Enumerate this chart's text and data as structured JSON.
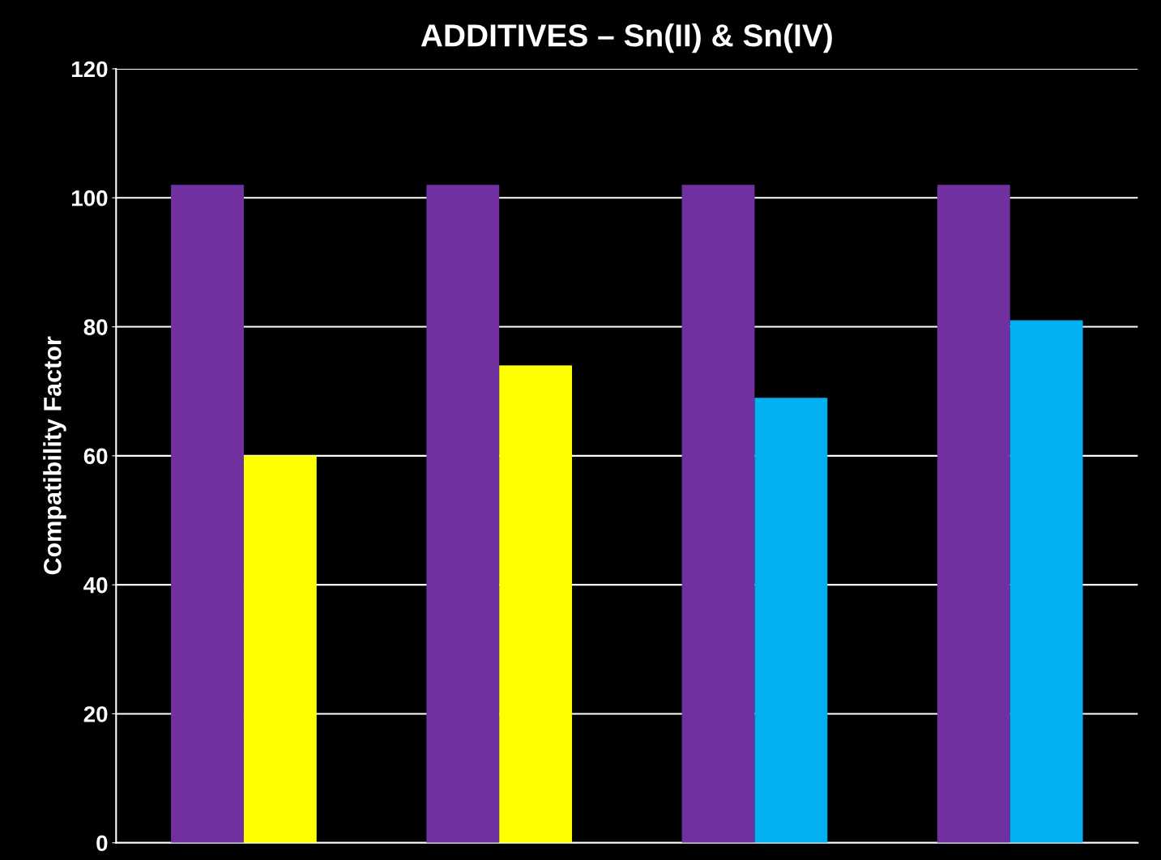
{
  "chart_data": {
    "type": "bar",
    "title": "ADDITIVES – Sn(II) & Sn(IV)",
    "ylabel": "Compatibility Factor",
    "categories": [
      null,
      null,
      null,
      null
    ],
    "series": [
      {
        "color": "#7030a0",
        "values": [
          102,
          102,
          102,
          102
        ]
      },
      {
        "colors": [
          "#ffff00",
          "#ffff00",
          "#00b0f0",
          "#00b0f0"
        ],
        "values": [
          60,
          74,
          69,
          81
        ]
      }
    ],
    "ylim": [
      0,
      120
    ],
    "yticks": [
      0,
      20,
      40,
      60,
      80,
      100,
      120
    ],
    "grid": "y",
    "legend": false
  }
}
